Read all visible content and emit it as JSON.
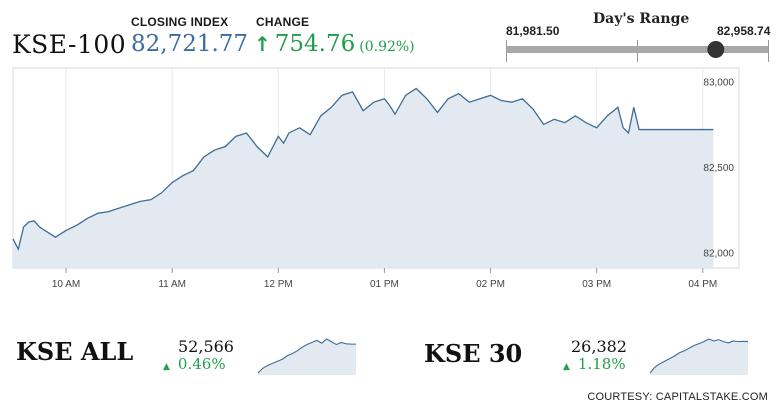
{
  "header": {
    "index_name": "KSE-100",
    "closing_label": "CLOSING INDEX",
    "closing_value": "82,721.77",
    "change_label": "CHANGE",
    "change_arrow": "↑",
    "change_value": "754.76",
    "change_pct": "(0.92%)",
    "range_title": "Day's Range",
    "range_low": "81,981.50",
    "range_high": "82,958.74",
    "range_position": 0.8,
    "up_color": "#1f9f4b",
    "value_color": "#3b6ea0"
  },
  "chart_data": {
    "type": "area",
    "title": "",
    "xlabel": "",
    "ylabel": "",
    "x_tick_labels": [
      "10 AM",
      "11 AM",
      "12 PM",
      "01 PM",
      "02 PM",
      "03 PM",
      "04 PM"
    ],
    "y_tick_values": [
      82000,
      82500,
      83000
    ],
    "y_tick_labels": [
      "82,000",
      "82,500",
      "83,000"
    ],
    "ylim": [
      81910,
      83080
    ],
    "xlim_hours": [
      9.5,
      16.2
    ],
    "grid": "vertical",
    "line_color": "#3f6d96",
    "fill_color": "#e2e9f1",
    "series": [
      {
        "x": [
          9.5,
          9.55,
          9.6,
          9.65,
          9.7,
          9.75,
          9.8,
          9.9,
          10.0,
          10.1,
          10.2,
          10.3,
          10.4,
          10.5,
          10.6,
          10.7,
          10.8,
          10.9,
          11.0,
          11.1,
          11.2,
          11.3,
          11.4,
          11.5,
          11.6,
          11.7,
          11.8,
          11.9,
          12.0,
          12.05,
          12.1,
          12.2,
          12.3,
          12.4,
          12.5,
          12.6,
          12.7,
          12.8,
          12.9,
          13.0,
          13.05,
          13.1,
          13.2,
          13.3,
          13.4,
          13.5,
          13.6,
          13.7,
          13.8,
          13.9,
          14.0,
          14.1,
          14.2,
          14.3,
          14.4,
          14.5,
          14.6,
          14.7,
          14.8,
          14.9,
          15.0,
          15.1,
          15.2,
          15.25,
          15.3,
          15.35,
          15.4,
          15.5,
          15.6,
          15.7,
          15.8,
          15.9,
          16.0,
          16.1
        ],
        "values": [
          82080,
          82020,
          82150,
          82180,
          82185,
          82150,
          82130,
          82090,
          82130,
          82160,
          82200,
          82230,
          82240,
          82260,
          82280,
          82300,
          82310,
          82350,
          82410,
          82450,
          82480,
          82560,
          82600,
          82620,
          82680,
          82700,
          82620,
          82560,
          82680,
          82640,
          82700,
          82730,
          82690,
          82800,
          82850,
          82920,
          82940,
          82830,
          82880,
          82900,
          82860,
          82810,
          82920,
          82960,
          82900,
          82820,
          82900,
          82930,
          82880,
          82900,
          82920,
          82890,
          82880,
          82900,
          82840,
          82750,
          82780,
          82760,
          82800,
          82760,
          82730,
          82800,
          82850,
          82730,
          82700,
          82850,
          82720,
          82720,
          82720,
          82720,
          82720,
          82720,
          82720,
          82720
        ]
      }
    ]
  },
  "mini": [
    {
      "name": "KSE ALL",
      "value": "52,566",
      "arrow": "▲",
      "change": "0.46%",
      "chart_data": {
        "type": "area",
        "values": [
          52150,
          52220,
          52260,
          52290,
          52320,
          52350,
          52400,
          52430,
          52470,
          52520,
          52560,
          52590,
          52620,
          52580,
          52640,
          52600,
          52560,
          52590,
          52570,
          52566,
          52566
        ]
      }
    },
    {
      "name": "KSE 30",
      "value": "26,382",
      "arrow": "▲",
      "change": "1.18%",
      "chart_data": {
        "type": "area",
        "values": [
          25900,
          25990,
          26040,
          26080,
          26120,
          26160,
          26210,
          26240,
          26280,
          26320,
          26350,
          26380,
          26420,
          26390,
          26410,
          26380,
          26360,
          26390,
          26380,
          26382,
          26382
        ]
      }
    }
  ],
  "footer": {
    "source": "COURTESY: CAPITALSTAKE.COM"
  }
}
